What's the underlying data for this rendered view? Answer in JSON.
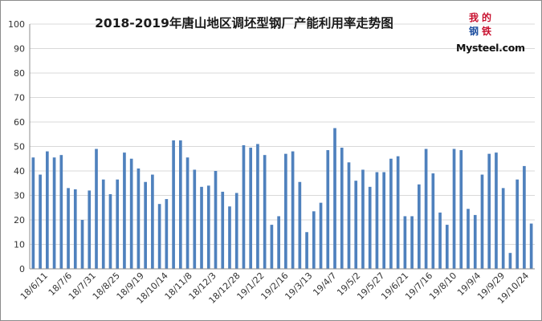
{
  "chart_data": {
    "type": "bar",
    "title": "2018-2019年唐山地区调坯型钢厂产能利用率走势图",
    "ylim": [
      0,
      100
    ],
    "y_ticks": [
      "0",
      "10",
      "20",
      "30",
      "40",
      "50",
      "60",
      "70",
      "80",
      "90",
      "100"
    ],
    "grid": true,
    "x_tick_labels": [
      "18/6/11",
      "18/7/6",
      "18/7/31",
      "18/8/25",
      "18/9/19",
      "18/10/14",
      "18/11/8",
      "18/12/3",
      "18/12/28",
      "19/1/22",
      "19/2/16",
      "19/3/13",
      "19/4/7",
      "19/5/2",
      "19/5/27",
      "19/6/21",
      "19/7/16",
      "19/8/10",
      "19/9/4",
      "19/9/29",
      "19/10/24"
    ],
    "bar_color": "#4f81bd",
    "values": [
      45.5,
      38.5,
      48,
      45.5,
      46.5,
      33,
      32.5,
      20,
      32,
      49,
      36.5,
      30.5,
      36.5,
      47.5,
      45,
      41,
      35.5,
      38.5,
      26.5,
      28.5,
      52.5,
      52.5,
      45.5,
      40.5,
      33.5,
      34,
      40,
      31.5,
      25.5,
      31,
      50.5,
      49.5,
      51,
      46.5,
      18,
      21.5,
      47,
      48,
      35.5,
      15,
      23.5,
      27,
      48.5,
      57.5,
      49.5,
      43.5,
      36,
      40.5,
      33.5,
      39.5,
      39.5,
      45,
      46,
      21.5,
      21.5,
      34.5,
      49,
      39,
      23,
      18,
      49,
      48.5,
      24.5,
      22,
      38.5,
      47,
      47.5,
      33,
      6.5,
      36.5,
      42,
      18.5
    ]
  },
  "logo": {
    "chars": [
      "我",
      "的",
      "钢",
      "铁"
    ],
    "text": "Mysteel.com",
    "colors": [
      "#c8102e",
      "#c8102e",
      "#1e4fa0",
      "#c8102e"
    ]
  }
}
